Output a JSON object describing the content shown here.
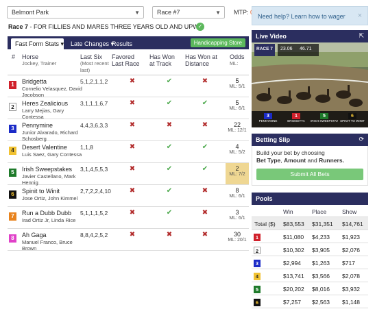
{
  "header": {
    "track": "Belmont Park",
    "race": "Race #7",
    "mtp_label": "MTP:",
    "mtp_value": "0",
    "race_title": "Race 7",
    "race_desc": " - FOR FILLIES AND MARES THREE YEARS OLD AND UPWARD..."
  },
  "tabs": {
    "fast": "Fast Form Stats",
    "late": "Late Changes",
    "results": "Results",
    "handicapping": "Handicapping Store"
  },
  "columns": {
    "num": "#",
    "horse": "Horse",
    "horse_sub": "Jockey, Trainer",
    "lastsix": "Last Six",
    "lastsix_sub": "(Most recent last)",
    "favored": "Favored Last Race",
    "track": "Has Won at Track",
    "distance": "Has Won at Distance",
    "odds": "Odds",
    "odds_sub": "ML:"
  },
  "runners": [
    {
      "num": "1",
      "name": "Bridgetta",
      "jt": "Cornelio Velasquez, David Jacobson",
      "six": "5,1,2,1,1,2",
      "fav": false,
      "trk": true,
      "dist": false,
      "odds": "5",
      "ml": "ML: 5/1",
      "color": "#d0202b",
      "fg": "#fff",
      "hl": false
    },
    {
      "num": "2",
      "name": "Heres Zealicious",
      "jt": "Larry Mejias, Gary Contessa",
      "six": "3,1,1,1,6,7",
      "fav": false,
      "trk": true,
      "dist": true,
      "odds": "5",
      "ml": "ML: 6/1",
      "color": "#ffffff",
      "fg": "#222",
      "hl": false
    },
    {
      "num": "3",
      "name": "Pennymine",
      "jt": "Junior Alvarado, Richard Schosberg",
      "six": "4,4,3,6,3,3",
      "fav": false,
      "trk": false,
      "dist": false,
      "odds": "22",
      "ml": "ML: 12/1",
      "color": "#1b2bc7",
      "fg": "#fff",
      "hl": false
    },
    {
      "num": "4",
      "name": "Desert Valentine",
      "jt": "Luis Saez, Gary Contessa",
      "six": "1,1,8",
      "fav": false,
      "trk": true,
      "dist": true,
      "odds": "4",
      "ml": "ML: 5/2",
      "color": "#f1c232",
      "fg": "#222",
      "hl": false
    },
    {
      "num": "5",
      "name": "Irish Sweepstakes",
      "jt": "Javier Castellano, Mark Hennig",
      "six": "3,1,4,5,5,3",
      "fav": false,
      "trk": true,
      "dist": true,
      "odds": "2",
      "ml": "ML: 7/2",
      "color": "#1e7a2a",
      "fg": "#fff",
      "hl": true
    },
    {
      "num": "6",
      "name": "Spinit to Winit",
      "jt": "Jose Ortiz, John Kimmel",
      "six": "2,7,2,2,4,10",
      "fav": false,
      "trk": true,
      "dist": false,
      "odds": "8",
      "ml": "ML: 6/1",
      "color": "#111111",
      "fg": "#f1c232",
      "hl": false
    },
    {
      "num": "7",
      "name": "Run a Dubb Dubb",
      "jt": "Irad Ortiz Jr, Linda Rice",
      "six": "5,1,1,1,5,2",
      "fav": false,
      "trk": true,
      "dist": false,
      "odds": "3",
      "ml": "ML: 6/1",
      "color": "#e8831e",
      "fg": "#fff",
      "hl": false
    },
    {
      "num": "8",
      "name": "Ah Gaga",
      "jt": "Manuel Franco, Bruce Brown",
      "six": "8,8,4,2,5,2",
      "fav": false,
      "trk": false,
      "dist": false,
      "odds": "30",
      "ml": "ML: 20/1",
      "color": "#e040c8",
      "fg": "#fff",
      "hl": false
    }
  ],
  "help": {
    "text": "Need help? Learn how to wager",
    "close": "×"
  },
  "video": {
    "title": "Live Video",
    "race_label": "RACE 7",
    "clock": "23.06",
    "clock2": "46.71",
    "leaders": [
      {
        "num": "3",
        "name": "PENNYMINE",
        "color": "#1b2bc7",
        "fg": "#fff"
      },
      {
        "num": "1",
        "name": "BRIDGETTA",
        "color": "#d0202b",
        "fg": "#fff"
      },
      {
        "num": "5",
        "name": "IRISH SWEEPSTAKES",
        "color": "#1e7a2a",
        "fg": "#fff"
      },
      {
        "num": "6",
        "name": "SPINIT TO WINIT",
        "color": "#111111",
        "fg": "#f1c232"
      }
    ]
  },
  "slip": {
    "title": "Betting Slip",
    "line1": "Build your bet by choosing",
    "bt": "Bet Type",
    "amt": "Amount",
    "and": "and",
    "run": "Runners.",
    "submit": "Submit All Bets"
  },
  "pools": {
    "title": "Pools",
    "col_win": "Win",
    "col_place": "Place",
    "col_show": "Show",
    "total_label": "Total ($)",
    "total": {
      "win": "$83,553",
      "place": "$31,351",
      "show": "$14,761"
    },
    "rows": [
      {
        "num": "1",
        "color": "#d0202b",
        "fg": "#fff",
        "win": "$11,080",
        "place": "$4,233",
        "show": "$1,923"
      },
      {
        "num": "2",
        "color": "#ffffff",
        "fg": "#222",
        "win": "$10,302",
        "place": "$3,905",
        "show": "$2,076"
      },
      {
        "num": "3",
        "color": "#1b2bc7",
        "fg": "#fff",
        "win": "$2,994",
        "place": "$1,263",
        "show": "$717"
      },
      {
        "num": "4",
        "color": "#f1c232",
        "fg": "#222",
        "win": "$13,741",
        "place": "$3,566",
        "show": "$2,078"
      },
      {
        "num": "5",
        "color": "#1e7a2a",
        "fg": "#fff",
        "win": "$20,202",
        "place": "$8,016",
        "show": "$3,932"
      },
      {
        "num": "6",
        "color": "#111111",
        "fg": "#f1c232",
        "win": "$7,257",
        "place": "$2,563",
        "show": "$1,148"
      }
    ]
  }
}
